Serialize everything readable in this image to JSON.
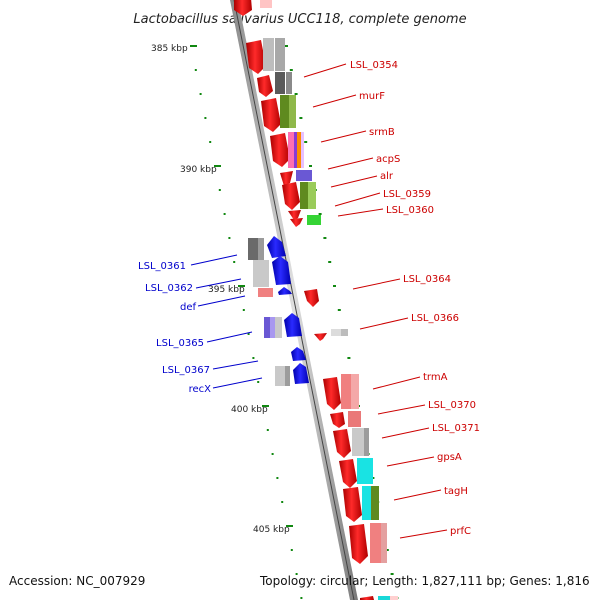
{
  "title": "Lactobacillus salivarius UCC118, complete genome",
  "footer": {
    "accession": "Accession: NC_007929",
    "summary": "Topology: circular; Length: 1,827,111 bp; Genes: 1,816"
  },
  "scale_labels": [
    "385 kbp",
    "390 kbp",
    "395 kbp",
    "400 kbp",
    "405 kbp"
  ],
  "gene_labels": [
    {
      "text": "LSL_0354",
      "strand": "forward",
      "color": "#cc0000"
    },
    {
      "text": "murF",
      "strand": "forward",
      "color": "#cc0000"
    },
    {
      "text": "srmB",
      "strand": "forward",
      "color": "#cc0000"
    },
    {
      "text": "acpS",
      "strand": "forward",
      "color": "#cc0000"
    },
    {
      "text": "alr",
      "strand": "forward",
      "color": "#cc0000"
    },
    {
      "text": "LSL_0359",
      "strand": "forward",
      "color": "#cc0000"
    },
    {
      "text": "LSL_0360",
      "strand": "forward",
      "color": "#cc0000"
    },
    {
      "text": "LSL_0364",
      "strand": "forward",
      "color": "#cc0000"
    },
    {
      "text": "LSL_0366",
      "strand": "forward",
      "color": "#cc0000"
    },
    {
      "text": "trmA",
      "strand": "forward",
      "color": "#cc0000"
    },
    {
      "text": "LSL_0370",
      "strand": "forward",
      "color": "#cc0000"
    },
    {
      "text": "LSL_0371",
      "strand": "forward",
      "color": "#cc0000"
    },
    {
      "text": "gpsA",
      "strand": "forward",
      "color": "#cc0000"
    },
    {
      "text": "tagH",
      "strand": "forward",
      "color": "#cc0000"
    },
    {
      "text": "prfC",
      "strand": "forward",
      "color": "#cc0000"
    },
    {
      "text": "LSL_0361",
      "strand": "reverse",
      "color": "#0000cc"
    },
    {
      "text": "LSL_0362",
      "strand": "reverse",
      "color": "#0000cc"
    },
    {
      "text": "def",
      "strand": "reverse",
      "color": "#0000cc"
    },
    {
      "text": "LSL_0365",
      "strand": "reverse",
      "color": "#0000cc"
    },
    {
      "text": "LSL_0367",
      "strand": "reverse",
      "color": "#0000cc"
    },
    {
      "text": "recX",
      "strand": "reverse",
      "color": "#0000cc"
    }
  ],
  "colors": {
    "forward_cds": "#ee0000",
    "reverse_cds": "#0000ee",
    "backbone": "#aaaaaa",
    "tick": "#118811"
  }
}
